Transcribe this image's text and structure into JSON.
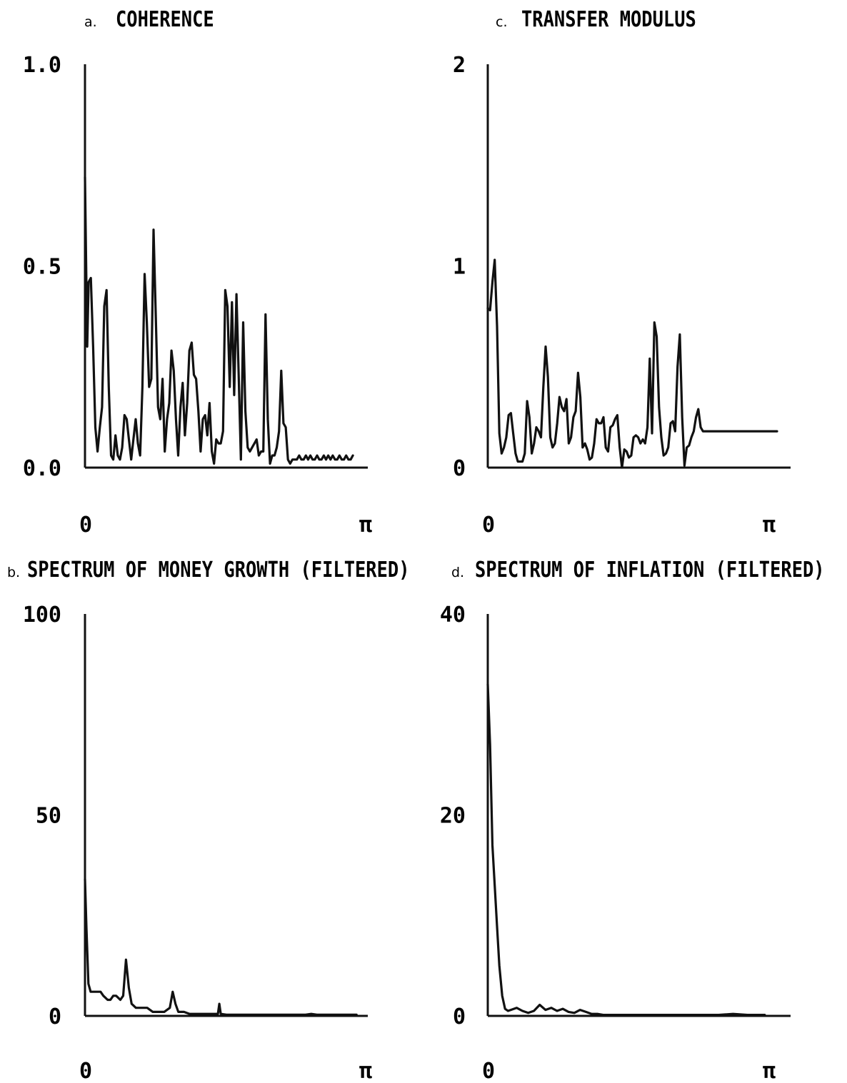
{
  "chart_data": [
    {
      "id": "a",
      "type": "line",
      "letter": "a.",
      "title": "COHERENCE",
      "ylim": [
        0,
        1
      ],
      "yticks": [
        "0.0",
        "0.5",
        "1.0"
      ],
      "ytick_values": [
        0,
        0.5,
        1
      ],
      "xticks": [
        "0",
        "π"
      ],
      "xlim": [
        0,
        1
      ],
      "grid": false,
      "series": [
        {
          "x": [
            0,
            0.008,
            0.013,
            0.021,
            0.029,
            0.037,
            0.045,
            0.053,
            0.061,
            0.069,
            0.077,
            0.085,
            0.093,
            0.101,
            0.109,
            0.117,
            0.125,
            0.133,
            0.141,
            0.149,
            0.157,
            0.165,
            0.173,
            0.181,
            0.189,
            0.197,
            0.205,
            0.213,
            0.221,
            0.229,
            0.237,
            0.245,
            0.253,
            0.261,
            0.269,
            0.277,
            0.285,
            0.293,
            0.301,
            0.309,
            0.317,
            0.325,
            0.333,
            0.341,
            0.349,
            0.357,
            0.365,
            0.373,
            0.381,
            0.389,
            0.397,
            0.405,
            0.413,
            0.421,
            0.429,
            0.437,
            0.445,
            0.453,
            0.461,
            0.469,
            0.477,
            0.485,
            0.493,
            0.501,
            0.509,
            0.517,
            0.525,
            0.533,
            0.541,
            0.549,
            0.557,
            0.565,
            0.573,
            0.581,
            0.589,
            0.597,
            0.605,
            0.613,
            0.621,
            0.629,
            0.637,
            0.645,
            0.653,
            0.661,
            0.669,
            0.677,
            0.685,
            0.693,
            0.701,
            0.709,
            0.717,
            0.725,
            0.733,
            0.741,
            0.749,
            0.757,
            0.765,
            0.773,
            0.781,
            0.789,
            0.797,
            0.805,
            0.813,
            0.821,
            0.829,
            0.837,
            0.845,
            0.853,
            0.861,
            0.869,
            0.877,
            0.885,
            0.893,
            0.901,
            0.909,
            0.917,
            0.925,
            0.933,
            0.941,
            0.949,
            0.957
          ],
          "y": [
            0.72,
            0.3,
            0.46,
            0.47,
            0.3,
            0.1,
            0.04,
            0.1,
            0.15,
            0.4,
            0.44,
            0.2,
            0.03,
            0.02,
            0.08,
            0.03,
            0.02,
            0.05,
            0.13,
            0.12,
            0.07,
            0.02,
            0.07,
            0.12,
            0.06,
            0.03,
            0.2,
            0.48,
            0.36,
            0.2,
            0.22,
            0.59,
            0.37,
            0.15,
            0.12,
            0.22,
            0.04,
            0.12,
            0.16,
            0.29,
            0.24,
            0.12,
            0.03,
            0.15,
            0.21,
            0.08,
            0.16,
            0.29,
            0.31,
            0.23,
            0.22,
            0.14,
            0.04,
            0.12,
            0.13,
            0.08,
            0.16,
            0.04,
            0.01,
            0.07,
            0.06,
            0.06,
            0.09,
            0.44,
            0.4,
            0.2,
            0.41,
            0.18,
            0.43,
            0.23,
            0.02,
            0.36,
            0.14,
            0.05,
            0.04,
            0.05,
            0.06,
            0.07,
            0.03,
            0.04,
            0.04,
            0.38,
            0.12,
            0.01,
            0.03,
            0.03,
            0.05,
            0.09,
            0.24,
            0.11,
            0.1,
            0.02,
            0.01,
            0.02,
            0.02,
            0.02,
            0.03,
            0.02,
            0.02,
            0.03,
            0.02,
            0.03,
            0.02,
            0.02,
            0.03,
            0.02,
            0.02,
            0.03,
            0.02,
            0.03,
            0.02,
            0.03,
            0.02,
            0.02,
            0.03,
            0.02,
            0.02,
            0.03,
            0.02,
            0.02,
            0.03
          ]
        }
      ]
    },
    {
      "id": "b",
      "type": "line",
      "letter": "b.",
      "title": "SPECTRUM OF MONEY GROWTH (FILTERED)",
      "ylim": [
        0,
        100
      ],
      "yticks": [
        "0",
        "50",
        "100"
      ],
      "ytick_values": [
        0,
        50,
        100
      ],
      "xticks": [
        "0",
        "π"
      ],
      "xlim": [
        0,
        1
      ],
      "grid": false,
      "series": [
        {
          "x": [
            0,
            0.005,
            0.012,
            0.02,
            0.03,
            0.045,
            0.055,
            0.065,
            0.08,
            0.09,
            0.1,
            0.11,
            0.125,
            0.135,
            0.145,
            0.155,
            0.165,
            0.18,
            0.2,
            0.22,
            0.24,
            0.26,
            0.28,
            0.3,
            0.31,
            0.32,
            0.33,
            0.34,
            0.35,
            0.37,
            0.4,
            0.43,
            0.46,
            0.47,
            0.475,
            0.48,
            0.5,
            0.6,
            0.7,
            0.78,
            0.8,
            0.82,
            0.9,
            0.95,
            0.96
          ],
          "y": [
            34,
            22,
            8,
            6,
            6,
            6,
            6,
            5,
            4,
            4,
            5,
            5,
            4,
            5,
            14,
            7,
            3,
            2,
            2,
            2,
            1,
            1,
            1,
            2,
            6,
            3,
            1,
            1,
            1,
            0.5,
            0.5,
            0.5,
            0.5,
            0.5,
            3,
            0.5,
            0.3,
            0.3,
            0.3,
            0.3,
            0.5,
            0.3,
            0.3,
            0.3,
            0.3
          ]
        }
      ]
    },
    {
      "id": "c",
      "type": "line",
      "letter": "c.",
      "title": "TRANSFER MODULUS",
      "ylim": [
        0,
        2
      ],
      "yticks": [
        "0",
        "1",
        "2"
      ],
      "ytick_values": [
        0,
        1,
        2
      ],
      "xticks": [
        "0",
        "π"
      ],
      "xlim": [
        0,
        1
      ],
      "grid": false,
      "series": [
        {
          "x": [
            0,
            0.008,
            0.016,
            0.024,
            0.032,
            0.04,
            0.048,
            0.056,
            0.064,
            0.072,
            0.08,
            0.088,
            0.096,
            0.104,
            0.112,
            0.12,
            0.128,
            0.136,
            0.144,
            0.152,
            0.16,
            0.168,
            0.176,
            0.184,
            0.192,
            0.2,
            0.208,
            0.216,
            0.224,
            0.232,
            0.24,
            0.248,
            0.256,
            0.264,
            0.272,
            0.28,
            0.288,
            0.296,
            0.304,
            0.312,
            0.32,
            0.328,
            0.336,
            0.344,
            0.352,
            0.36,
            0.368,
            0.376,
            0.384,
            0.392,
            0.4,
            0.408,
            0.416,
            0.424,
            0.432,
            0.44,
            0.448,
            0.456,
            0.464,
            0.472,
            0.48,
            0.488,
            0.496,
            0.504,
            0.512,
            0.52,
            0.528,
            0.536,
            0.544,
            0.552,
            0.56,
            0.568,
            0.576,
            0.584,
            0.592,
            0.6,
            0.608,
            0.616,
            0.624,
            0.632,
            0.64,
            0.648,
            0.656,
            0.664,
            0.672,
            0.68,
            0.688,
            0.696,
            0.704,
            0.712,
            0.72,
            0.728,
            0.736,
            0.744,
            0.752,
            0.76,
            0.768,
            0.776,
            0.784,
            0.792,
            0.8,
            0.808,
            0.816,
            0.824,
            0.832,
            0.84,
            0.848,
            0.856,
            0.864,
            0.872,
            0.88,
            0.888,
            0.896,
            0.904,
            0.912,
            0.92,
            0.928,
            0.936,
            0.944,
            0.952,
            0.96,
            0.968,
            0.976,
            0.984,
            0.992,
            1.0
          ],
          "y": [
            0.79,
            0.78,
            0.92,
            1.03,
            0.7,
            0.17,
            0.07,
            0.1,
            0.15,
            0.26,
            0.27,
            0.17,
            0.07,
            0.03,
            0.03,
            0.03,
            0.07,
            0.33,
            0.25,
            0.07,
            0.12,
            0.2,
            0.18,
            0.15,
            0.4,
            0.6,
            0.45,
            0.15,
            0.1,
            0.12,
            0.22,
            0.35,
            0.3,
            0.28,
            0.34,
            0.12,
            0.15,
            0.25,
            0.28,
            0.47,
            0.35,
            0.1,
            0.12,
            0.09,
            0.04,
            0.05,
            0.12,
            0.24,
            0.22,
            0.22,
            0.25,
            0.1,
            0.08,
            0.2,
            0.21,
            0.24,
            0.26,
            0.1,
            0.0,
            0.09,
            0.08,
            0.05,
            0.06,
            0.15,
            0.16,
            0.15,
            0.12,
            0.14,
            0.12,
            0.2,
            0.54,
            0.17,
            0.72,
            0.65,
            0.3,
            0.15,
            0.06,
            0.07,
            0.1,
            0.22,
            0.23,
            0.18,
            0.5,
            0.66,
            0.25,
            0.01,
            0.1,
            0.11,
            0.15,
            0.18,
            0.25,
            0.29,
            0.2,
            0.18,
            0.18,
            0.18,
            0.18,
            0.18,
            0.18,
            0.18,
            0.18,
            0.18,
            0.18,
            0.18,
            0.18,
            0.18,
            0.18,
            0.18,
            0.18,
            0.18,
            0.18,
            0.18,
            0.18,
            0.18,
            0.18,
            0.18,
            0.18,
            0.18,
            0.18,
            0.18,
            0.18,
            0.18,
            0.18,
            0.18,
            0.18,
            0.18
          ]
        }
      ]
    },
    {
      "id": "d",
      "type": "line",
      "letter": "d.",
      "title": "SPECTRUM OF INFLATION (FILTERED)",
      "ylim": [
        0,
        40
      ],
      "yticks": [
        "0",
        "20",
        "40"
      ],
      "ytick_values": [
        0,
        20,
        40
      ],
      "xticks": [
        "0",
        "π"
      ],
      "xlim": [
        0,
        1
      ],
      "grid": false,
      "series": [
        {
          "x": [
            0,
            0.008,
            0.016,
            0.024,
            0.032,
            0.04,
            0.05,
            0.06,
            0.07,
            0.08,
            0.1,
            0.12,
            0.14,
            0.16,
            0.18,
            0.2,
            0.22,
            0.24,
            0.26,
            0.28,
            0.3,
            0.32,
            0.34,
            0.36,
            0.38,
            0.4,
            0.45,
            0.5,
            0.6,
            0.7,
            0.8,
            0.85,
            0.9,
            0.95,
            0.96
          ],
          "y": [
            33,
            27,
            17,
            13,
            9,
            5,
            2,
            0.7,
            0.5,
            0.6,
            0.8,
            0.5,
            0.3,
            0.5,
            1.1,
            0.6,
            0.8,
            0.5,
            0.7,
            0.4,
            0.3,
            0.6,
            0.4,
            0.2,
            0.2,
            0.1,
            0.1,
            0.1,
            0.1,
            0.1,
            0.1,
            0.2,
            0.1,
            0.1,
            0.1
          ]
        }
      ]
    }
  ]
}
